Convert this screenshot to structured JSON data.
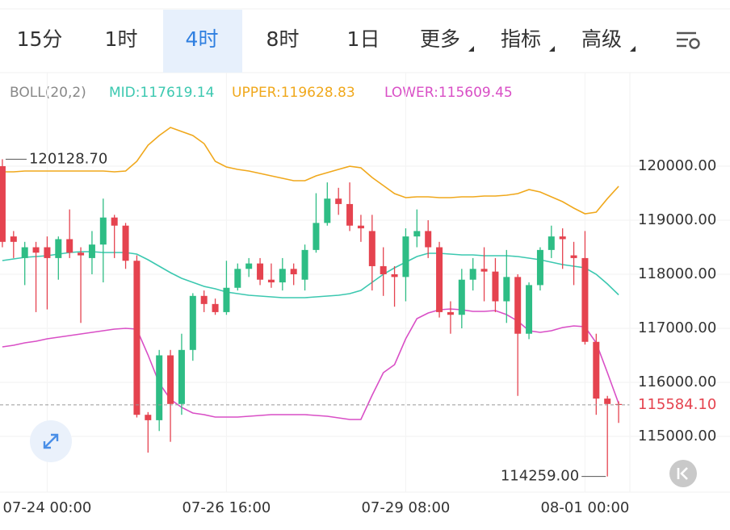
{
  "tabs": [
    "15分",
    "1时",
    "4时",
    "8时",
    "1日",
    "更多",
    "指标",
    "高级"
  ],
  "active_tab": 2,
  "chart_data": {
    "type": "candlestick",
    "indicator": "BOLL(20,2)",
    "categories": [
      null,
      null,
      null,
      null,
      "07-24 00:00",
      null,
      null,
      null,
      null,
      null,
      null,
      null,
      null,
      null,
      null,
      null,
      null,
      null,
      null,
      null,
      "07-26 16:00",
      null,
      null,
      null,
      null,
      null,
      null,
      null,
      null,
      null,
      null,
      null,
      null,
      null,
      null,
      null,
      "07-29 08:00",
      null,
      null,
      null,
      null,
      null,
      null,
      null,
      null,
      null,
      null,
      null,
      null,
      null,
      null,
      null,
      "08-01 00:00",
      null,
      null,
      null
    ],
    "open": [
      120000,
      118700,
      118300,
      118500,
      118500,
      118300,
      118650,
      118400,
      118300,
      118550,
      119050,
      118900,
      118250,
      115400,
      115300,
      116500,
      115600,
      116600,
      117600,
      117450,
      117300,
      117750,
      118100,
      118200,
      117900,
      117850,
      118100,
      117900,
      118450,
      118950,
      119400,
      119300,
      118900,
      118800,
      118150,
      118000,
      117950,
      118700,
      118800,
      118500,
      117300,
      117250,
      117900,
      118100,
      118050,
      117500,
      117950,
      116900,
      117800,
      118450,
      118700,
      118350,
      118300,
      116750,
      115700,
      115600
    ],
    "high": [
      120128.7,
      118800,
      118600,
      118600,
      118700,
      118700,
      119200,
      118500,
      118800,
      119400,
      119100,
      118950,
      118350,
      115450,
      116600,
      116600,
      116900,
      117650,
      117700,
      117550,
      118250,
      118200,
      118300,
      118300,
      118200,
      118300,
      118200,
      118550,
      119500,
      119700,
      119600,
      119700,
      119100,
      119100,
      118500,
      118150,
      118850,
      119200,
      119000,
      118600,
      117500,
      118100,
      118300,
      118500,
      118300,
      118450,
      118000,
      117850,
      118500,
      118900,
      118850,
      118600,
      118800,
      116900,
      115750,
      115650
    ],
    "low": [
      118500,
      118300,
      117800,
      117300,
      117350,
      117900,
      118300,
      117100,
      118000,
      117850,
      118300,
      118100,
      115350,
      114700,
      115100,
      114900,
      115400,
      116400,
      117300,
      117250,
      117250,
      117700,
      117950,
      117800,
      117750,
      117700,
      117800,
      117700,
      118400,
      118900,
      119100,
      118800,
      118600,
      117700,
      117600,
      117400,
      117500,
      118500,
      118300,
      117200,
      116900,
      117000,
      117700,
      117500,
      117300,
      117100,
      115750,
      116800,
      117700,
      118300,
      118100,
      117800,
      116700,
      115400,
      114259,
      115250
    ],
    "close": [
      118600,
      118600,
      118500,
      118400,
      118300,
      118650,
      118400,
      118350,
      118550,
      119050,
      118900,
      118250,
      115400,
      115300,
      116500,
      115600,
      116600,
      117600,
      117450,
      117300,
      117750,
      118100,
      118200,
      117900,
      117850,
      118100,
      118000,
      118450,
      118950,
      119400,
      119300,
      118900,
      118850,
      118150,
      118000,
      117950,
      118700,
      118800,
      118500,
      117300,
      117250,
      117900,
      118100,
      118050,
      117500,
      117950,
      116900,
      117800,
      118450,
      118700,
      118650,
      118300,
      116750,
      115700,
      115600,
      115584.1
    ],
    "up_color": "#2ebd85",
    "down_color": "#e5434f",
    "series": [
      {
        "name": "MID:117619.14",
        "color": "#3cc8b0",
        "values": [
          118254,
          118284,
          118313,
          118328,
          118343,
          118373,
          118403,
          118418,
          118418,
          118403,
          118403,
          118403,
          118373,
          118269,
          118149,
          118030,
          117925,
          117851,
          117776,
          117731,
          117672,
          117642,
          117612,
          117597,
          117582,
          117567,
          117567,
          117567,
          117582,
          117597,
          117612,
          117642,
          117701,
          117851,
          118000,
          118119,
          118224,
          118328,
          118388,
          118388,
          118373,
          118358,
          118358,
          118343,
          118343,
          118343,
          118328,
          118299,
          118269,
          118224,
          118179,
          118149,
          118119,
          118000,
          117821,
          117619.14
        ]
      },
      {
        "name": "UPPER:119628.83",
        "color": "#f0a81c",
        "values": [
          119896,
          119896,
          119910,
          119910,
          119910,
          119910,
          119910,
          119910,
          119910,
          119910,
          119896,
          119910,
          120090,
          120388,
          120567,
          120716,
          120642,
          120567,
          120418,
          120090,
          119985,
          119940,
          119910,
          119866,
          119821,
          119776,
          119731,
          119731,
          119821,
          119881,
          119940,
          119999,
          119970,
          119791,
          119642,
          119493,
          119418,
          119433,
          119433,
          119418,
          119418,
          119433,
          119433,
          119448,
          119448,
          119463,
          119493,
          119567,
          119522,
          119433,
          119343,
          119224,
          119119,
          119150,
          119400,
          119628.83
        ]
      },
      {
        "name": "LOWER:115609.45",
        "color": "#d94fc6",
        "values": [
          116657,
          116687,
          116731,
          116761,
          116806,
          116836,
          116866,
          116896,
          116925,
          116955,
          116985,
          117000,
          116985,
          116508,
          115985,
          115687,
          115537,
          115433,
          115403,
          115358,
          115358,
          115358,
          115373,
          115388,
          115403,
          115403,
          115403,
          115403,
          115388,
          115373,
          115343,
          115313,
          115313,
          115761,
          116179,
          116328,
          116806,
          117179,
          117284,
          117343,
          117358,
          117343,
          117313,
          117313,
          117328,
          117254,
          117134,
          116955,
          116925,
          116955,
          117015,
          117045,
          117030,
          116731,
          116179,
          115609.45
        ]
      }
    ],
    "ylim": [
      113970,
      121060
    ],
    "yticks": [
      {
        "value": 115000,
        "label": "115000.00"
      },
      {
        "value": 116000,
        "label": "116000.00"
      },
      {
        "value": 117000,
        "label": "117000.00"
      },
      {
        "value": 118000,
        "label": "118000.00"
      },
      {
        "value": 119000,
        "label": "119000.00"
      },
      {
        "value": 120000,
        "label": "120000.00"
      }
    ],
    "grid": true,
    "annotations": [
      {
        "value": 120128.7,
        "label": "120128.70"
      },
      {
        "value": 114259,
        "label": "114259.00"
      }
    ],
    "last_price": {
      "value": 115584.1,
      "label": "115584.10"
    }
  }
}
